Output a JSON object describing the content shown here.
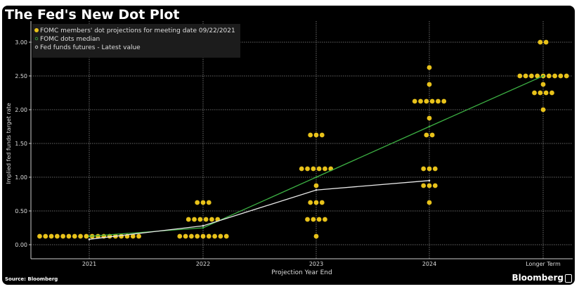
{
  "chart_data": {
    "type": "scatter",
    "title": "The Fed's New Dot Plot",
    "xlabel": "Projection Year End",
    "ylabel": "Implied fed funds target rate",
    "categories": [
      "2021",
      "2022",
      "2023",
      "2024",
      "Longer Term"
    ],
    "ylim": [
      0,
      3.0
    ],
    "yticks": [
      "0.00",
      "0.50",
      "1.00",
      "1.50",
      "2.00",
      "2.50",
      "3.00"
    ],
    "grid": true,
    "legend_position": "top-left",
    "legend": [
      "FOMC members' dot projections for meeting date 09/22/2021",
      "FOMC dots median",
      "Fed funds futures - Latest value"
    ],
    "dots": [
      [
        {
          "rate": 0.125,
          "count": 18
        }
      ],
      [
        {
          "rate": 0.125,
          "count": 9
        },
        {
          "rate": 0.375,
          "count": 6
        },
        {
          "rate": 0.625,
          "count": 3
        }
      ],
      [
        {
          "rate": 0.125,
          "count": 1
        },
        {
          "rate": 0.375,
          "count": 4
        },
        {
          "rate": 0.625,
          "count": 3
        },
        {
          "rate": 0.875,
          "count": 1
        },
        {
          "rate": 1.125,
          "count": 6
        },
        {
          "rate": 1.625,
          "count": 3
        }
      ],
      [
        {
          "rate": 0.625,
          "count": 1
        },
        {
          "rate": 0.875,
          "count": 3
        },
        {
          "rate": 1.125,
          "count": 3
        },
        {
          "rate": 1.625,
          "count": 2
        },
        {
          "rate": 1.875,
          "count": 1
        },
        {
          "rate": 2.125,
          "count": 6
        },
        {
          "rate": 2.375,
          "count": 1
        },
        {
          "rate": 2.625,
          "count": 1
        }
      ],
      [
        {
          "rate": 2.0,
          "count": 1
        },
        {
          "rate": 2.25,
          "count": 4
        },
        {
          "rate": 2.375,
          "count": 1
        },
        {
          "rate": 2.5,
          "count": 9
        },
        {
          "rate": 3.0,
          "count": 2
        }
      ]
    ],
    "series": [
      {
        "name": "FOMC dots median",
        "values": [
          0.125,
          0.25,
          1.0,
          1.75,
          2.5
        ]
      },
      {
        "name": "Fed funds futures - Latest value",
        "values": [
          0.08,
          0.28,
          0.81,
          0.95,
          null
        ]
      }
    ],
    "colors": {
      "dots": "#e8c21a",
      "median": "#3cb043",
      "futures": "#e8e8e8",
      "grid": "#888888"
    }
  },
  "footer": {
    "source": "Source: Bloomberg",
    "brand": "Bloomberg"
  }
}
